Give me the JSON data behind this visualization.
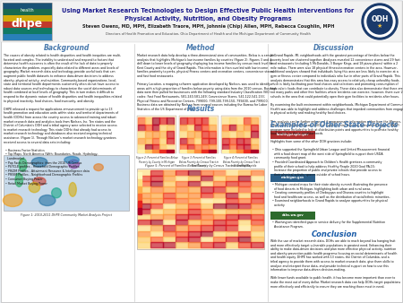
{
  "title_line1": "Using Market Research Technologies to Design Effective Public Health Interventions for",
  "title_line2": "Physical Activity, Nutrition, and Obesity Programs",
  "authors": "Steven Owens, MD, MPH, Elizabeth Traore, MPH, Johnnie (Chip) Allen, MPH, Rebecca Coughlin, MPH",
  "affiliation": "Directors of Health Promotion and Education, Ohio Department of Health and the Michigan Department of Community Health",
  "background_heading": "Background",
  "method_heading": "Method",
  "results_heading": "Results",
  "discussion_heading": "Discussion",
  "examples_heading": "Examples of Other State Projects",
  "conclusion_heading": "Conclusion",
  "figure1_caption": "Figure 1: 2010-2011 DHPE Community Market Analysis Project",
  "fig2_caption": "Figure 2: Percent of Families Below\nPoverty by County in Michigan",
  "fig3_caption": "Figure 3: Percent of Families\nBelow Poverty by Census Tract in\nKent County",
  "fig4_caption": "Figure 4: Percent of Families\nBelow Poverty by Census Tract\nin Grand Rapids",
  "fig5_caption": "Figure 5: Percent of Families Below Poverty by Census Tract in Grand Rapids",
  "poster_bg": "#e8ecf0",
  "header_bg": "#f5f5f5",
  "col_bg": "#ffffff",
  "heading_color": "#4a7aad",
  "title_color1": "#1a1a8c",
  "title_color2": "#1a1a8c",
  "author_color": "#111111",
  "body_color": "#111111",
  "conclusion_heading_color": "#1a5ca8"
}
